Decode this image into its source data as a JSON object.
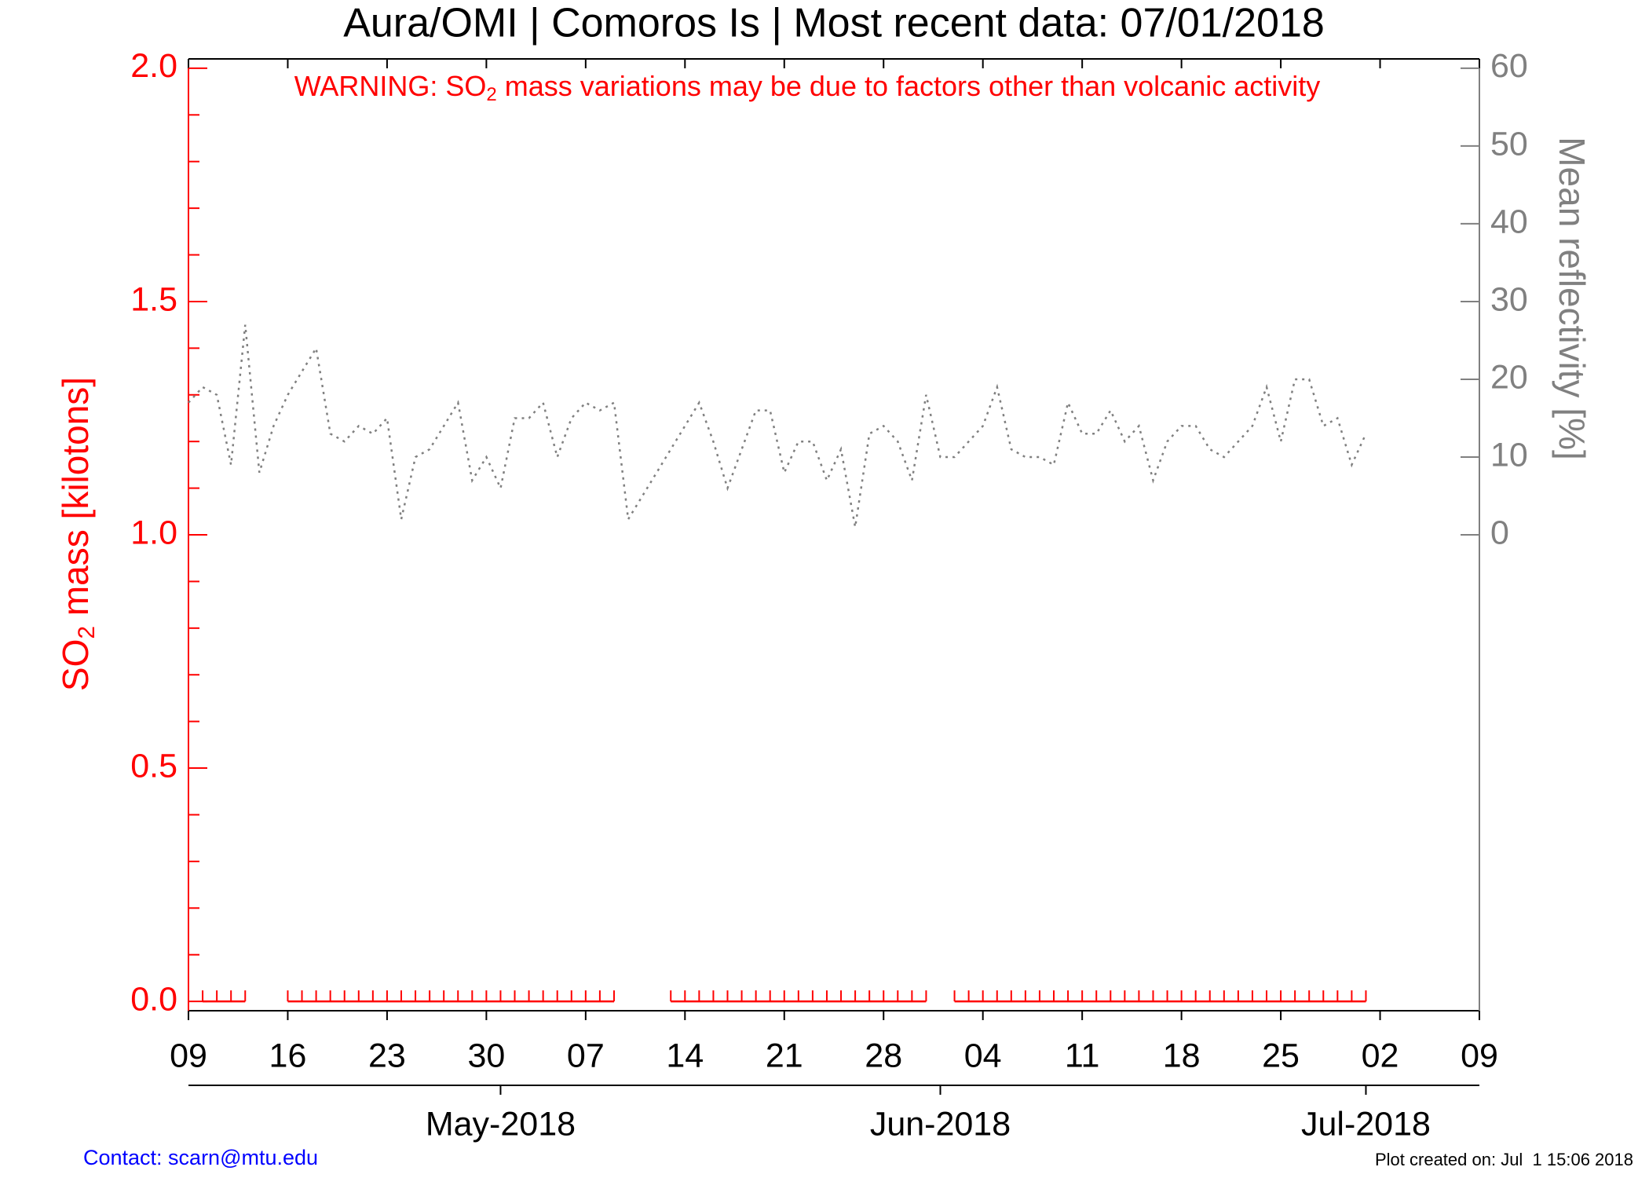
{
  "chart_data": {
    "type": "line",
    "title": "Aura/OMI | Comoros Is | Most recent data: 07/01/2018",
    "warning": {
      "before": "WARNING: SO",
      "sub": "2",
      "after": " mass variations may be due to factors other than volcanic activity"
    },
    "ylabel": {
      "before": "SO",
      "sub": "2",
      "after": " mass [kilotons]"
    },
    "y2label": "Mean reflectivity [%]",
    "contact": "Contact: scarn@mtu.edu",
    "created": "Plot created on: Jul  1 15:06 2018",
    "xlim": [
      "2018-04-09",
      "2018-07-09"
    ],
    "xticks": [
      {
        "value": "2018-04-09",
        "label": "09"
      },
      {
        "value": "2018-04-16",
        "label": "16"
      },
      {
        "value": "2018-04-23",
        "label": "23"
      },
      {
        "value": "2018-04-30",
        "label": "30"
      },
      {
        "value": "2018-05-07",
        "label": "07"
      },
      {
        "value": "2018-05-14",
        "label": "14"
      },
      {
        "value": "2018-05-21",
        "label": "21"
      },
      {
        "value": "2018-05-28",
        "label": "28"
      },
      {
        "value": "2018-06-04",
        "label": "04"
      },
      {
        "value": "2018-06-11",
        "label": "11"
      },
      {
        "value": "2018-06-18",
        "label": "18"
      },
      {
        "value": "2018-06-25",
        "label": "25"
      },
      {
        "value": "2018-07-02",
        "label": "02"
      },
      {
        "value": "2018-07-09",
        "label": "09"
      }
    ],
    "monthticks": [
      {
        "value": "2018-05-01",
        "label": "May-2018"
      },
      {
        "value": "2018-06-01",
        "label": "Jun-2018"
      },
      {
        "value": "2018-07-01",
        "label": "Jul-2018"
      }
    ],
    "ylim": [
      -0.02,
      2.02
    ],
    "yticks": [
      {
        "value": 0,
        "label": "0.0"
      },
      {
        "value": 0.5,
        "label": "0.5"
      },
      {
        "value": 1,
        "label": "1.0"
      },
      {
        "value": 1.5,
        "label": "1.5"
      },
      {
        "value": 2,
        "label": "2.0"
      }
    ],
    "yminorticks": [
      0.1,
      0.2,
      0.3,
      0.4,
      0.6,
      0.7,
      0.8,
      0.9,
      1.1,
      1.2,
      1.3,
      1.4,
      1.6,
      1.7,
      1.8,
      1.9
    ],
    "y2lim": [
      -61.2,
      61.2
    ],
    "y2ticks": [
      0,
      10,
      20,
      30,
      40,
      50,
      60
    ],
    "x": [
      "2018-04-09",
      "2018-04-10",
      "2018-04-11",
      "2018-04-12",
      "2018-04-13",
      "2018-04-14",
      "2018-04-15",
      "2018-04-16",
      "2018-04-17",
      "2018-04-18",
      "2018-04-19",
      "2018-04-20",
      "2018-04-21",
      "2018-04-22",
      "2018-04-23",
      "2018-04-24",
      "2018-04-25",
      "2018-04-26",
      "2018-04-27",
      "2018-04-28",
      "2018-04-29",
      "2018-04-30",
      "2018-05-01",
      "2018-05-02",
      "2018-05-03",
      "2018-05-04",
      "2018-05-05",
      "2018-05-06",
      "2018-05-07",
      "2018-05-08",
      "2018-05-09",
      "2018-05-10",
      "2018-05-11",
      "2018-05-12",
      "2018-05-13",
      "2018-05-14",
      "2018-05-15",
      "2018-05-16",
      "2018-05-17",
      "2018-05-18",
      "2018-05-19",
      "2018-05-20",
      "2018-05-21",
      "2018-05-22",
      "2018-05-23",
      "2018-05-24",
      "2018-05-25",
      "2018-05-26",
      "2018-05-27",
      "2018-05-28",
      "2018-05-29",
      "2018-05-30",
      "2018-05-31",
      "2018-06-01",
      "2018-06-02",
      "2018-06-03",
      "2018-06-04",
      "2018-06-05",
      "2018-06-06",
      "2018-06-07",
      "2018-06-08",
      "2018-06-09",
      "2018-06-10",
      "2018-06-11",
      "2018-06-12",
      "2018-06-13",
      "2018-06-14",
      "2018-06-15",
      "2018-06-16",
      "2018-06-17",
      "2018-06-18",
      "2018-06-19",
      "2018-06-20",
      "2018-06-21",
      "2018-06-22",
      "2018-06-23",
      "2018-06-24",
      "2018-06-25",
      "2018-06-26",
      "2018-06-27",
      "2018-06-28",
      "2018-06-29",
      "2018-06-30",
      "2018-07-01"
    ],
    "series": [
      {
        "color": "#ff0000",
        "axis": "y",
        "style": "ticks",
        "values": [
          null,
          0,
          0,
          0,
          0,
          null,
          null,
          0,
          0,
          0,
          0,
          0,
          0,
          0,
          0,
          0,
          0,
          0,
          0,
          0,
          0,
          0,
          0,
          0,
          0,
          0,
          0,
          0,
          0,
          0,
          0,
          null,
          null,
          null,
          0,
          0,
          0,
          0,
          0,
          0,
          0,
          0,
          0,
          0,
          0,
          0,
          0,
          0,
          0,
          0,
          0,
          0,
          0,
          null,
          0,
          0,
          0,
          0,
          0,
          0,
          0,
          0,
          0,
          0,
          0,
          0,
          0,
          0,
          0,
          0,
          0,
          0,
          0,
          0,
          0,
          0,
          0,
          0,
          0,
          0,
          0,
          0,
          0,
          0
        ]
      },
      {
        "color": "#808080",
        "axis": "y2",
        "style": "dotted",
        "values": [
          17,
          19,
          18,
          9,
          27,
          8,
          14,
          18,
          21,
          24,
          13,
          12,
          14,
          13,
          15,
          2,
          10,
          11,
          14,
          17,
          7,
          10,
          6,
          15,
          15,
          17,
          10,
          15,
          17,
          16,
          17,
          2,
          5,
          8,
          11,
          14,
          17,
          12,
          6,
          11,
          16,
          16,
          8,
          12,
          12,
          7,
          11,
          1,
          13,
          14,
          12,
          7,
          18,
          10,
          10,
          12,
          14,
          19,
          11,
          10,
          10,
          9,
          17,
          13,
          13,
          16,
          12,
          14,
          7,
          12,
          14,
          14,
          11,
          10,
          12,
          14,
          19,
          12,
          20,
          20,
          14,
          15,
          9,
          13
        ]
      }
    ]
  }
}
